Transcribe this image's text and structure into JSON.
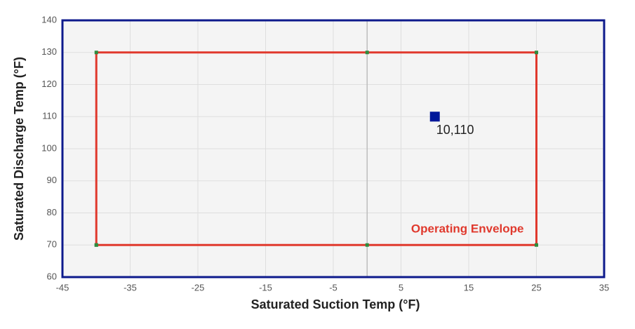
{
  "chart_data": {
    "type": "scatter",
    "x_label": "Saturated Suction Temp (°F)",
    "y_label": "Saturated Discharge Temp (°F)",
    "xlim": [
      -45,
      35
    ],
    "xticks": [
      -45,
      -35,
      -25,
      -15,
      -5,
      5,
      15,
      25,
      35
    ],
    "ylim": [
      60,
      140
    ],
    "yticks": [
      60,
      70,
      80,
      90,
      100,
      110,
      120,
      130,
      140
    ],
    "grid": true,
    "series": [
      {
        "name": "Operating Envelope",
        "color": "#e0392d",
        "marker_color": "#2e8b3e",
        "x": [
          -40,
          -40,
          0,
          25,
          25,
          0,
          -40
        ],
        "values": [
          70,
          130,
          130,
          130,
          70,
          70,
          70
        ]
      },
      {
        "color": "#00189a",
        "x": [
          10
        ],
        "values": [
          110
        ],
        "value_labels": [
          "10,110"
        ]
      }
    ]
  }
}
